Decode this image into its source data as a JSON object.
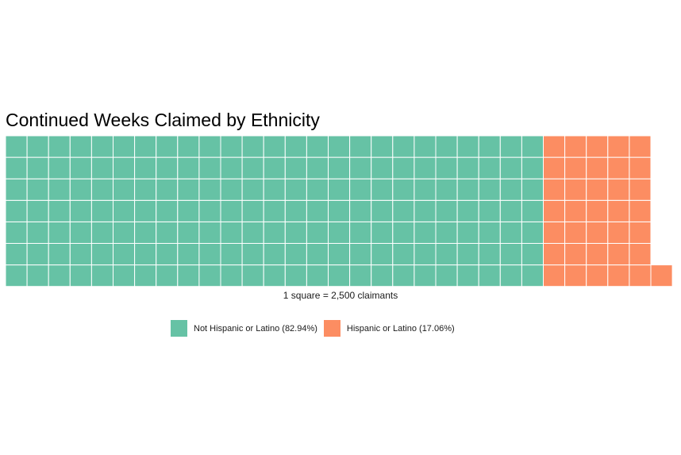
{
  "chart_data": {
    "type": "waffle",
    "title": "Continued Weeks Claimed by Ethnicity",
    "caption": "1 square = 2,500 claimants",
    "rows": 7,
    "series": [
      {
        "name": "Not Hispanic or Latino (82.94%)",
        "squares": 175,
        "color": "#66c2a5"
      },
      {
        "name": "Hispanic or Latino (17.06%)",
        "squares": 36,
        "color": "#fc8d62"
      }
    ],
    "legend_position": "bottom"
  }
}
